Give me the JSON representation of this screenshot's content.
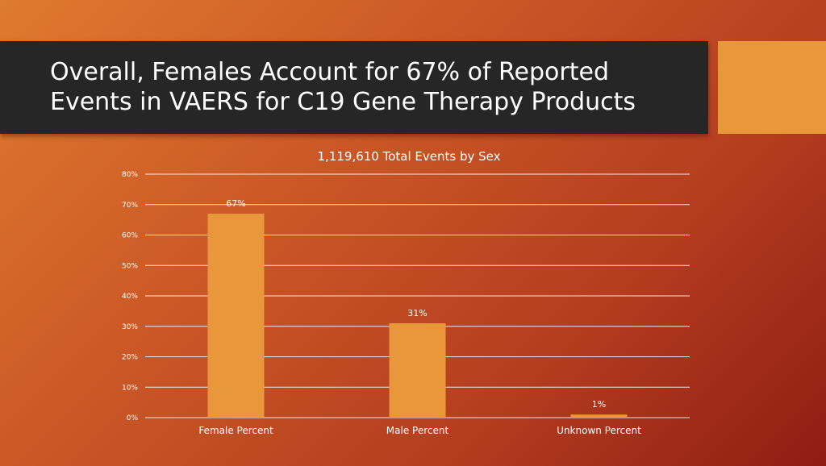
{
  "slide": {
    "title_line1": "Overall, Females Account for 67% of Reported",
    "title_line2": "Events in VAERS for C19 Gene Therapy Products"
  },
  "colors": {
    "bar": "#e8983b",
    "title_bar": "#262626",
    "accent": "#e8983b",
    "gridline": "#ffffff"
  },
  "chart_data": {
    "type": "bar",
    "title": "1,119,610 Total Events by Sex",
    "categories": [
      "Female Percent",
      "Male Percent",
      "Unknown Percent"
    ],
    "values": [
      67,
      31,
      1
    ],
    "data_labels": [
      "67%",
      "31%",
      "1%"
    ],
    "ylim": [
      0,
      80
    ],
    "yticks": [
      0,
      10,
      20,
      30,
      40,
      50,
      60,
      70,
      80
    ],
    "ytick_labels": [
      "0%",
      "10%",
      "20%",
      "30%",
      "40%",
      "50%",
      "60%",
      "70%",
      "80%"
    ],
    "grid": true,
    "legend": "none"
  }
}
